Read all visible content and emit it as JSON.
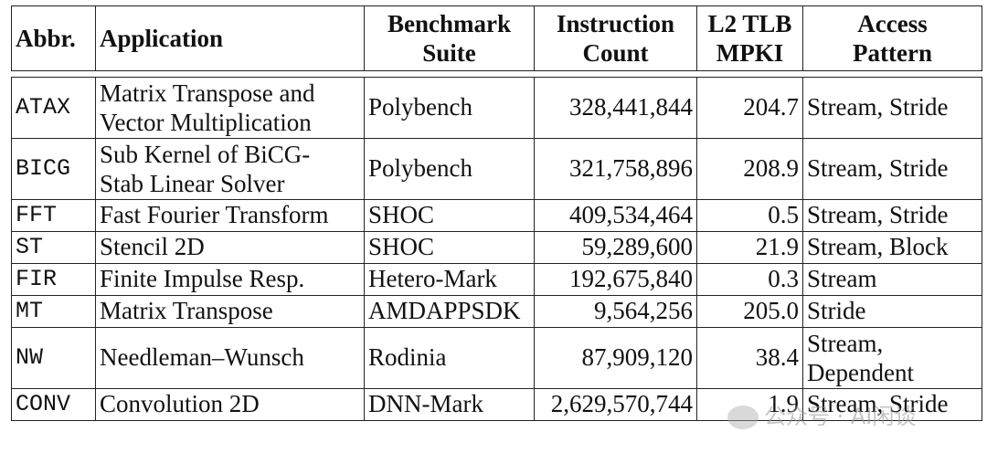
{
  "table": {
    "headers": {
      "abbr": "Abbr.",
      "application": "Application",
      "suite_line1": "Benchmark",
      "suite_line2": "Suite",
      "count_line1": "Instruction",
      "count_line2": "Count",
      "mpki_line1": "L2 TLB",
      "mpki_line2": "MPKI",
      "pattern_line1": "Access",
      "pattern_line2": "Pattern"
    },
    "rows": [
      {
        "abbr": "ATAX",
        "app_line1": "Matrix Transpose and",
        "app_line2": "Vector Multiplication",
        "suite": "Polybench",
        "count": "328,441,844",
        "mpki": "204.7",
        "pattern": "Stream, Stride"
      },
      {
        "abbr": "BICG",
        "app_line1": "Sub Kernel of BiCG-",
        "app_line2": "Stab Linear Solver",
        "suite": "Polybench",
        "count": "321,758,896",
        "mpki": "208.9",
        "pattern": "Stream, Stride"
      },
      {
        "abbr": "FFT",
        "app": "Fast Fourier Transform",
        "suite": "SHOC",
        "count": "409,534,464",
        "mpki": "0.5",
        "pattern": "Stream, Stride"
      },
      {
        "abbr": "ST",
        "app": "Stencil 2D",
        "suite": "SHOC",
        "count": "59,289,600",
        "mpki": "21.9",
        "pattern": "Stream, Block"
      },
      {
        "abbr": "FIR",
        "app": "Finite Impulse Resp.",
        "suite": "Hetero-Mark",
        "count": "192,675,840",
        "mpki": "0.3",
        "pattern": "Stream"
      },
      {
        "abbr": "MT",
        "app": "Matrix Transpose",
        "suite": "AMDAPPSDK",
        "count": "9,564,256",
        "mpki": "205.0",
        "pattern": "Stride"
      },
      {
        "abbr": "NW",
        "app": "Needleman–Wunsch",
        "suite": "Rodinia",
        "count": "87,909,120",
        "mpki": "38.4",
        "pattern_line1": "Stream,",
        "pattern_line2": "Dependent"
      },
      {
        "abbr": "CONV",
        "app": "Convolution 2D",
        "suite": "DNN-Mark",
        "count": "2,629,570,744",
        "mpki": "1.9",
        "pattern": "Stream, Stride"
      }
    ]
  },
  "watermark": {
    "text": "公众号 · AI闲谈"
  }
}
